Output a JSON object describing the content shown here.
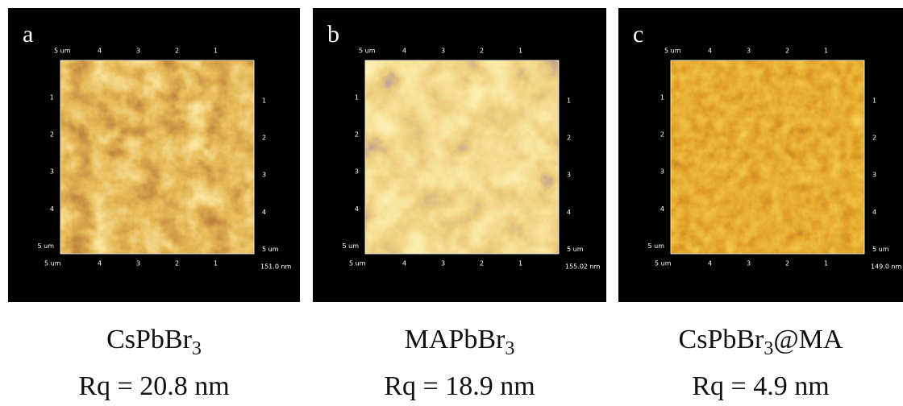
{
  "panels": [
    {
      "letter": "a",
      "top_ticks": [
        "5 um",
        "4",
        "3",
        "2",
        "1"
      ],
      "side_ticks": [
        "1",
        "2",
        "3",
        "4",
        "5 um"
      ],
      "bottom_ticks": [
        "5 um",
        "4",
        "3",
        "2",
        "1"
      ],
      "right_ticks": [
        "1",
        "2",
        "3",
        "4",
        "5 um"
      ],
      "z_label": "151.0 nm",
      "name": {
        "main": "CsPbBr",
        "sub": "3",
        "after": ""
      },
      "roughness": "Rq = 20.8 nm"
    },
    {
      "letter": "b",
      "top_ticks": [
        "5 um",
        "4",
        "3",
        "2",
        "1"
      ],
      "side_ticks": [
        "1",
        "2",
        "3",
        "4",
        "5 um"
      ],
      "bottom_ticks": [
        "5 um",
        "4",
        "3",
        "2",
        "1"
      ],
      "right_ticks": [
        "1",
        "2",
        "3",
        "4",
        "5 um"
      ],
      "z_label": "155.02 nm",
      "name": {
        "main": "MAPbBr",
        "sub": "3",
        "after": ""
      },
      "roughness": "Rq = 18.9 nm"
    },
    {
      "letter": "c",
      "top_ticks": [
        "5 um",
        "4",
        "3",
        "2",
        "1"
      ],
      "side_ticks": [
        "1",
        "2",
        "3",
        "4",
        "5 um"
      ],
      "bottom_ticks": [
        "5 um",
        "4",
        "3",
        "2",
        "1"
      ],
      "right_ticks": [
        "1",
        "2",
        "3",
        "4",
        "5 um"
      ],
      "z_label": "149.0 nm",
      "name": {
        "main": "CsPbBr",
        "sub": "3",
        "after": "@MA"
      },
      "roughness": "Rq = 4.9 nm"
    }
  ]
}
